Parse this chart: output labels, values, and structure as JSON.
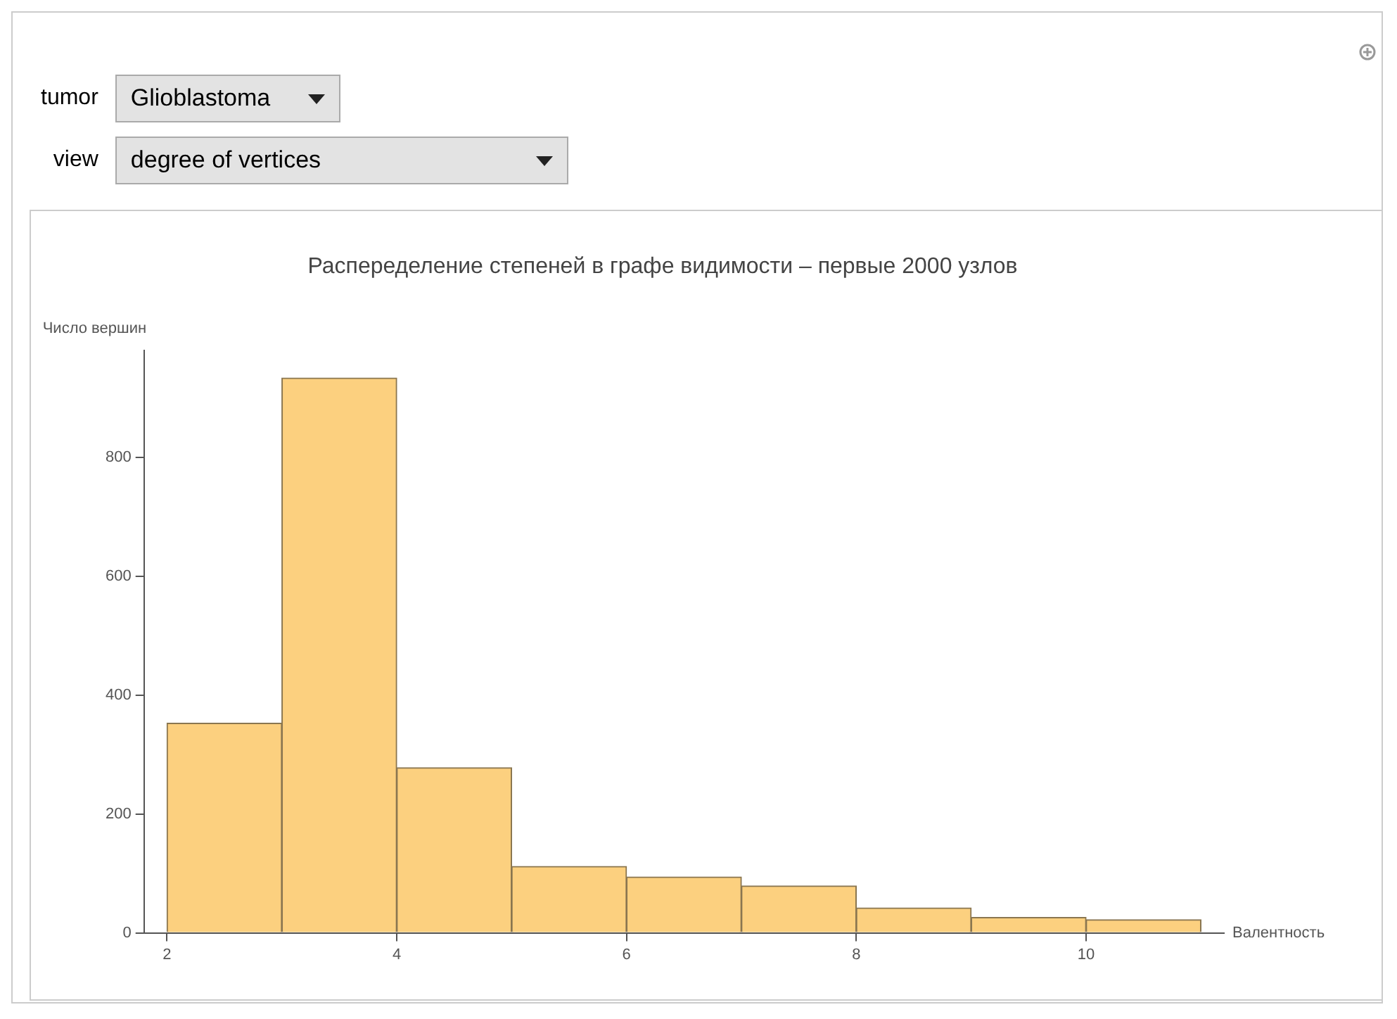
{
  "chart_data": {
    "type": "histogram",
    "title": "Распеределение степеней в графе видимости – первые 2000 узлов",
    "xlabel": "Валентность",
    "ylabel": "Число вершин",
    "bins": [
      2,
      3,
      4,
      5,
      6,
      7,
      8,
      9,
      10,
      11
    ],
    "values": [
      353,
      934,
      278,
      112,
      94,
      79,
      42,
      26,
      22
    ],
    "color": "#fcd07f",
    "xlim": [
      1.8,
      11.2
    ],
    "xticks": [
      2,
      4,
      6,
      8,
      10
    ],
    "ylim": [
      0,
      980
    ],
    "yticks": [
      0,
      200,
      400,
      600,
      800
    ],
    "grid": false,
    "legend": false,
    "annotations": [
      "tumor",
      "Glioblastoma",
      "view",
      "degree of vertices"
    ]
  }
}
